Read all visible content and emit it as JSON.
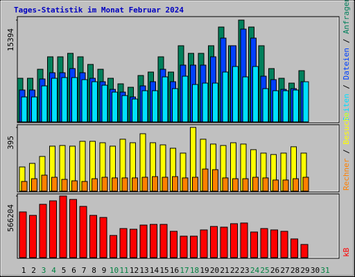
{
  "chart_data": [
    {
      "type": "bar",
      "title": "Tages-Statistik im Monat Februar 2024",
      "ylim": [
        0,
        15394
      ],
      "yticks": [
        15394
      ],
      "series": [
        {
          "name": "Anfragen",
          "color": "#00805c",
          "values": [
            6597,
            6597,
            7958,
            9842,
            9842,
            10366,
            9842,
            8690,
            7958,
            6597,
            5758,
            5235,
            7015,
            7538,
            9842,
            7538,
            11517,
            10366,
            10366,
            11517,
            14344,
            11517,
            15394,
            14344,
            11517,
            8062,
            6597,
            5863,
            7748,
            null,
            null
          ]
        },
        {
          "name": "Dateien",
          "color": "#0040ff",
          "values": [
            4816,
            4816,
            6491,
            7434,
            7434,
            8062,
            7434,
            6596,
            6073,
            4921,
            4502,
            3769,
            5444,
            6073,
            7957,
            6073,
            8585,
            8585,
            8585,
            9842,
            12669,
            11517,
            14030,
            12669,
            6910,
            6387,
            4921,
            5026,
            6073,
            null,
            null
          ]
        },
        {
          "name": "Seiten",
          "color": "#00e0ff",
          "values": [
            3769,
            3769,
            5444,
            6596,
            6701,
            6701,
            6387,
            6073,
            5549,
            4502,
            3979,
            3455,
            4711,
            4711,
            6805,
            5026,
            6910,
            5654,
            5863,
            5863,
            7538,
            8376,
            6805,
            8376,
            5026,
            4711,
            4711,
            4816,
            6073,
            null,
            null
          ]
        }
      ]
    },
    {
      "type": "bar",
      "ylim": [
        0,
        395
      ],
      "yticks": [
        395
      ],
      "series": [
        {
          "name": "Besuche",
          "color": "#ffff00",
          "values": [
            150,
            172,
            215,
            279,
            283,
            279,
            309,
            309,
            300,
            279,
            322,
            300,
            356,
            300,
            287,
            266,
            236,
            395,
            322,
            292,
            283,
            300,
            292,
            257,
            236,
            227,
            236,
            275,
            236,
            null,
            null
          ]
        },
        {
          "name": "Rechner",
          "color": "#ff8000",
          "values": [
            60,
            77,
            99,
            86,
            73,
            64,
            60,
            77,
            86,
            82,
            82,
            82,
            86,
            90,
            86,
            90,
            82,
            86,
            137,
            133,
            82,
            77,
            77,
            86,
            82,
            69,
            69,
            77,
            86,
            null,
            null
          ]
        }
      ]
    },
    {
      "type": "bar",
      "ylim": [
        0,
        566204
      ],
      "yticks": [
        566204
      ],
      "categories": [
        "1",
        "2",
        "3",
        "4",
        "5",
        "6",
        "7",
        "8",
        "9",
        "10",
        "11",
        "12",
        "13",
        "14",
        "15",
        "16",
        "17",
        "18",
        "19",
        "20",
        "21",
        "22",
        "23",
        "24",
        "25",
        "26",
        "27",
        "28",
        "29",
        "30",
        "31"
      ],
      "category_colors": [
        "#000000",
        "#000000",
        "#008040",
        "#008040",
        "#000000",
        "#000000",
        "#000000",
        "#000000",
        "#000000",
        "#008040",
        "#008040",
        "#000000",
        "#000000",
        "#000000",
        "#000000",
        "#000000",
        "#008040",
        "#008040",
        "#000000",
        "#000000",
        "#000000",
        "#000000",
        "#000000",
        "#008040",
        "#008040",
        "#000000",
        "#000000",
        "#000000",
        "#000000",
        "#000000",
        "#008040"
      ],
      "series": [
        {
          "name": "kB",
          "color": "#ff0000",
          "values": [
            419892,
            388082,
            489874,
            521684,
            566204,
            534408,
            470788,
            388082,
            368996,
            203584,
            267204,
            260842,
            299014,
            305376,
            305376,
            241756,
            197222,
            197222,
            254480,
            286290,
            279928,
            311738,
            318100,
            235394,
            267204,
            254480,
            241756,
            171774,
            120878,
            null,
            null
          ]
        }
      ]
    }
  ]
}
